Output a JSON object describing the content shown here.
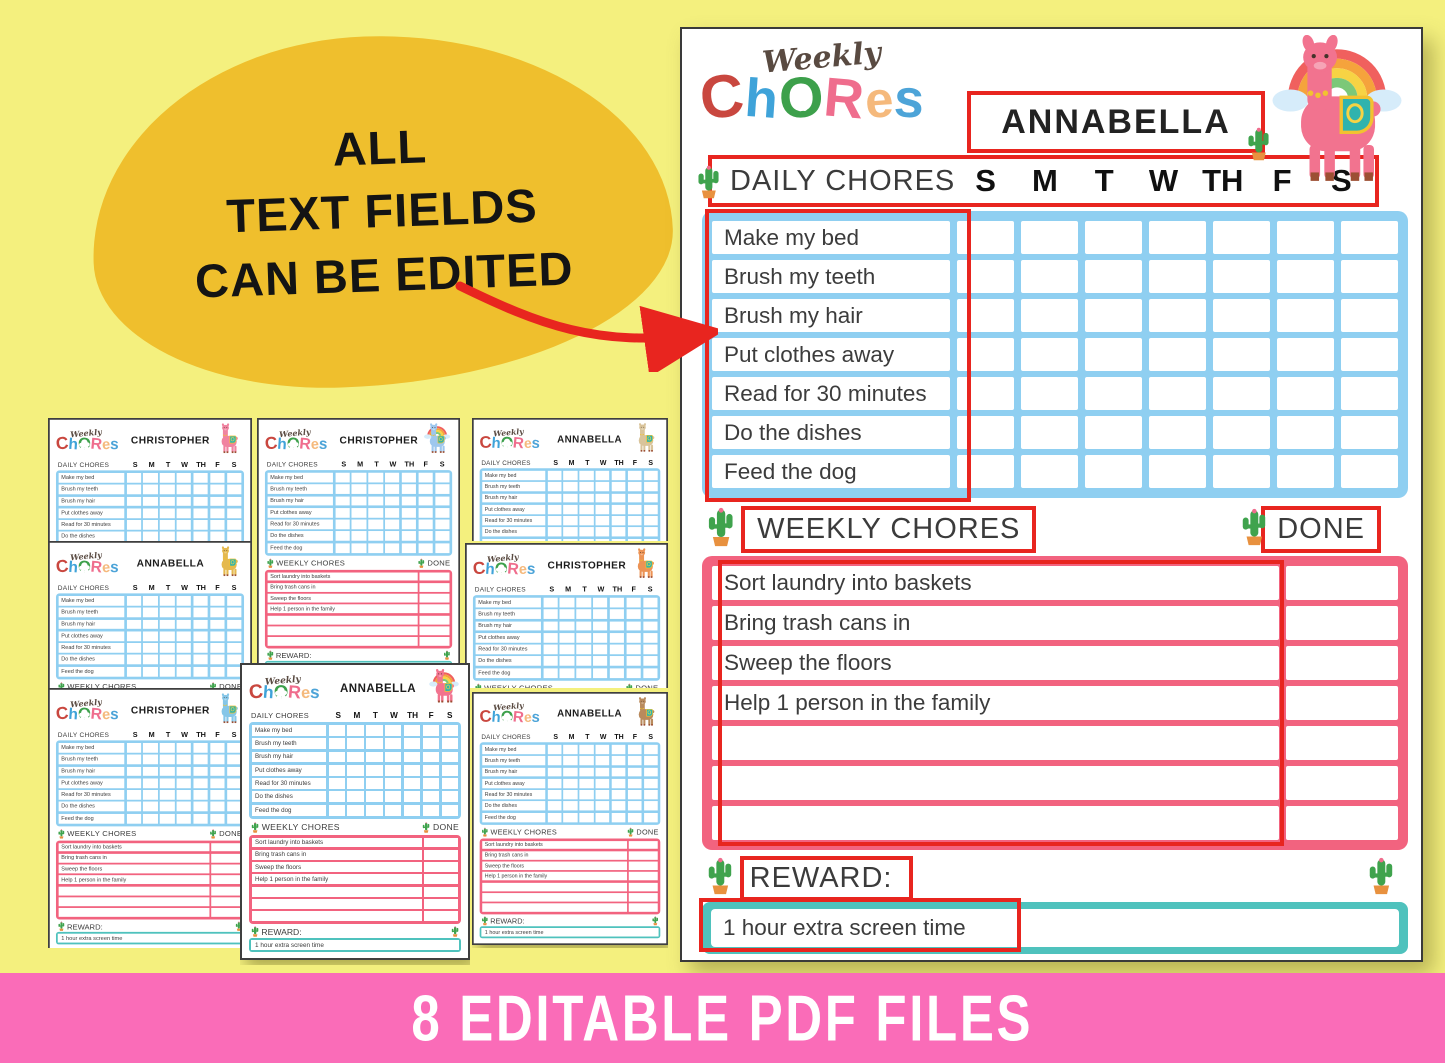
{
  "callout": {
    "lines": [
      "ALL",
      "TEXT FIELDS",
      "CAN BE EDITED"
    ]
  },
  "banner": {
    "text": "8 EDITABLE PDF FILES"
  },
  "chart": {
    "logo_script": "Weekly",
    "logo_word": "Chores",
    "name": "ANNABELLA",
    "daily_label": "DAILY CHORES",
    "days": [
      "S",
      "M",
      "T",
      "W",
      "TH",
      "F",
      "S"
    ],
    "daily_chores": [
      "Make my bed",
      "Brush my teeth",
      "Brush my hair",
      "Put clothes away",
      "Read for 30 minutes",
      "Do the dishes",
      "Feed the dog"
    ],
    "weekly_label": "WEEKLY CHORES",
    "done_label": "DONE",
    "weekly_chores": [
      "Sort laundry into baskets",
      "Bring trash cans in",
      "Sweep the floors",
      "Help 1 person in the family",
      "",
      "",
      ""
    ],
    "weekly_row_count": 7,
    "reward_label": "REWARD:",
    "reward_value": "1 hour extra screen time"
  },
  "thumbnails": [
    {
      "name": "CHRISTOPHER",
      "llama_color": "#f083a0",
      "rainbow": false
    },
    {
      "name": "CHRISTOPHER",
      "llama_color": "#9ec7ee",
      "rainbow": true
    },
    {
      "name": "ANNABELLA",
      "llama_color": "#d9c49b",
      "rainbow": false
    },
    {
      "name": "ANNABELLA",
      "llama_color": "#e5b94e",
      "rainbow": false
    },
    {
      "name": "CHRISTOPHER",
      "llama_color": "#ec9355",
      "rainbow": false
    },
    {
      "name": "CHRISTOPHER",
      "llama_color": "#85c6e8",
      "rainbow": false
    },
    {
      "name": "ANNABELLA",
      "llama_color": "#b98a5c",
      "rainbow": false
    },
    {
      "name": "ANNABELLA",
      "llama_color": "#f2738f",
      "rainbow": true
    }
  ],
  "colors": {
    "highlight_red": "#e8251f",
    "grid_blue": "#8fcff1",
    "grid_pink": "#f2637f",
    "reward_teal": "#4fc2bd",
    "banner_pink": "#fa6cb8",
    "background_yellow": "#f4f07e",
    "blob_gold": "#efbf2d",
    "logo_letter_colors": [
      "#c9473f",
      "#3fa3d9",
      "#3da04b",
      "#ef6d8d",
      "#f5b97c",
      "#4da4d8"
    ]
  }
}
